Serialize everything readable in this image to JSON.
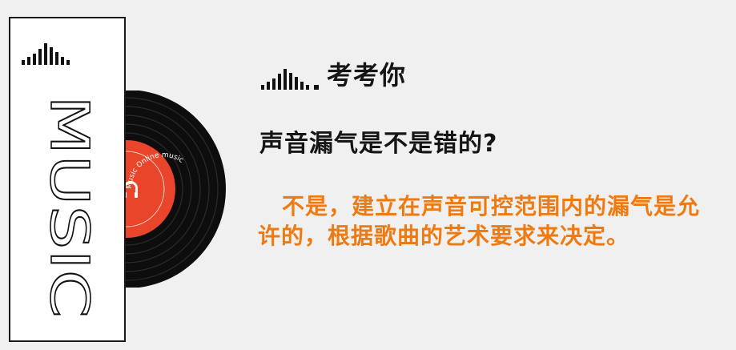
{
  "card": {
    "word": "MUSIC"
  },
  "record": {
    "label_text": "Music Online music"
  },
  "title": {
    "text": "考考你"
  },
  "question": {
    "text": "声音漏气是不是错的?"
  },
  "answer": {
    "text": "不是，建立在声音可控范围内的漏气是允许的，根据歌曲的艺术要求来决定。"
  },
  "colors": {
    "background": "#f0f0f0",
    "accent": "#ee7a12",
    "record_label": "#e8452a",
    "text_dark": "#151515"
  },
  "icons": {
    "equalizer": "bars-icon"
  }
}
